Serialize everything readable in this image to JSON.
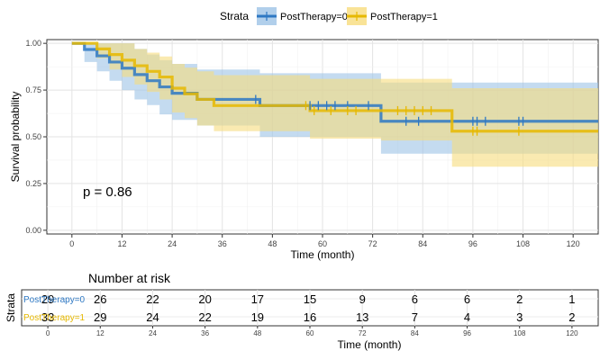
{
  "chart_data": [
    {
      "type": "line",
      "subtype": "kaplan-meier",
      "legend": {
        "title": "Strata",
        "position": "top"
      },
      "xlabel": "Time (month)",
      "ylabel": "Survival probability",
      "xlim": [
        -6,
        126
      ],
      "ylim": [
        -0.02,
        1.02
      ],
      "xticks": [
        0,
        12,
        24,
        36,
        48,
        60,
        72,
        84,
        96,
        108,
        120
      ],
      "yticks": [
        "0.00",
        "0.25",
        "0.50",
        "0.75",
        "1.00"
      ],
      "annotation": "p = 0.86",
      "grid": true,
      "series": [
        {
          "name": "PostTherapy=0",
          "color": "#2E78C3",
          "fill": "#9DC3E6",
          "steps": [
            [
              0,
              1.0
            ],
            [
              3,
              0.967
            ],
            [
              6,
              0.933
            ],
            [
              9,
              0.9
            ],
            [
              12,
              0.867
            ],
            [
              15,
              0.833
            ],
            [
              18,
              0.8
            ],
            [
              21,
              0.767
            ],
            [
              24,
              0.733
            ],
            [
              30,
              0.7
            ],
            [
              45,
              0.667
            ],
            [
              74,
              0.583
            ],
            [
              126,
              0.583
            ]
          ],
          "lower": [
            [
              0,
              1.0
            ],
            [
              3,
              0.9
            ],
            [
              6,
              0.85
            ],
            [
              9,
              0.8
            ],
            [
              12,
              0.75
            ],
            [
              15,
              0.7
            ],
            [
              18,
              0.67
            ],
            [
              21,
              0.62
            ],
            [
              24,
              0.59
            ],
            [
              30,
              0.56
            ],
            [
              45,
              0.5
            ],
            [
              74,
              0.41
            ],
            [
              126,
              0.41
            ]
          ],
          "upper": [
            [
              0,
              1.0
            ],
            [
              3,
              1.0
            ],
            [
              15,
              0.97
            ],
            [
              18,
              0.94
            ],
            [
              21,
              0.91
            ],
            [
              24,
              0.89
            ],
            [
              30,
              0.86
            ],
            [
              45,
              0.84
            ],
            [
              74,
              0.79
            ],
            [
              126,
              0.79
            ]
          ],
          "censor_times": [
            44,
            57,
            59,
            61,
            63,
            66,
            71,
            80,
            83,
            96,
            97,
            99,
            107,
            108
          ]
        },
        {
          "name": "PostTherapy=1",
          "color": "#E6B800",
          "fill": "#F7DC7D",
          "steps": [
            [
              0,
              1.0
            ],
            [
              6,
              0.97
            ],
            [
              9,
              0.94
            ],
            [
              12,
              0.91
            ],
            [
              15,
              0.88
            ],
            [
              18,
              0.85
            ],
            [
              21,
              0.82
            ],
            [
              24,
              0.76
            ],
            [
              27,
              0.73
            ],
            [
              30,
              0.7
            ],
            [
              34,
              0.667
            ],
            [
              57,
              0.64
            ],
            [
              74,
              0.64
            ],
            [
              91,
              0.53
            ],
            [
              126,
              0.53
            ]
          ],
          "lower": [
            [
              0,
              1.0
            ],
            [
              6,
              0.92
            ],
            [
              9,
              0.86
            ],
            [
              12,
              0.82
            ],
            [
              15,
              0.78
            ],
            [
              18,
              0.74
            ],
            [
              21,
              0.7
            ],
            [
              24,
              0.63
            ],
            [
              27,
              0.6
            ],
            [
              30,
              0.56
            ],
            [
              34,
              0.53
            ],
            [
              57,
              0.49
            ],
            [
              74,
              0.48
            ],
            [
              91,
              0.34
            ],
            [
              126,
              0.34
            ]
          ],
          "upper": [
            [
              0,
              1.0
            ],
            [
              12,
              1.0
            ],
            [
              15,
              0.97
            ],
            [
              18,
              0.95
            ],
            [
              21,
              0.93
            ],
            [
              24,
              0.89
            ],
            [
              27,
              0.87
            ],
            [
              30,
              0.85
            ],
            [
              34,
              0.83
            ],
            [
              57,
              0.81
            ],
            [
              74,
              0.81
            ],
            [
              91,
              0.76
            ],
            [
              126,
              0.76
            ]
          ],
          "censor_times": [
            56,
            58,
            62,
            66,
            68,
            78,
            80,
            82,
            84,
            86,
            96,
            97,
            107
          ]
        }
      ]
    },
    {
      "type": "table",
      "title": "Number at risk",
      "ylabel": "Strata",
      "xlabel": "Time (month)",
      "xticks": [
        0,
        12,
        24,
        36,
        48,
        60,
        72,
        84,
        96,
        108,
        120
      ],
      "rows": [
        {
          "name": "PostTherapy=0",
          "color": "#2E78C3",
          "values": [
            29,
            26,
            22,
            20,
            17,
            15,
            9,
            6,
            6,
            2,
            1
          ]
        },
        {
          "name": "PostTherapy=1",
          "color": "#E6B800",
          "values": [
            33,
            29,
            24,
            22,
            19,
            16,
            13,
            7,
            4,
            3,
            2
          ]
        }
      ]
    }
  ]
}
